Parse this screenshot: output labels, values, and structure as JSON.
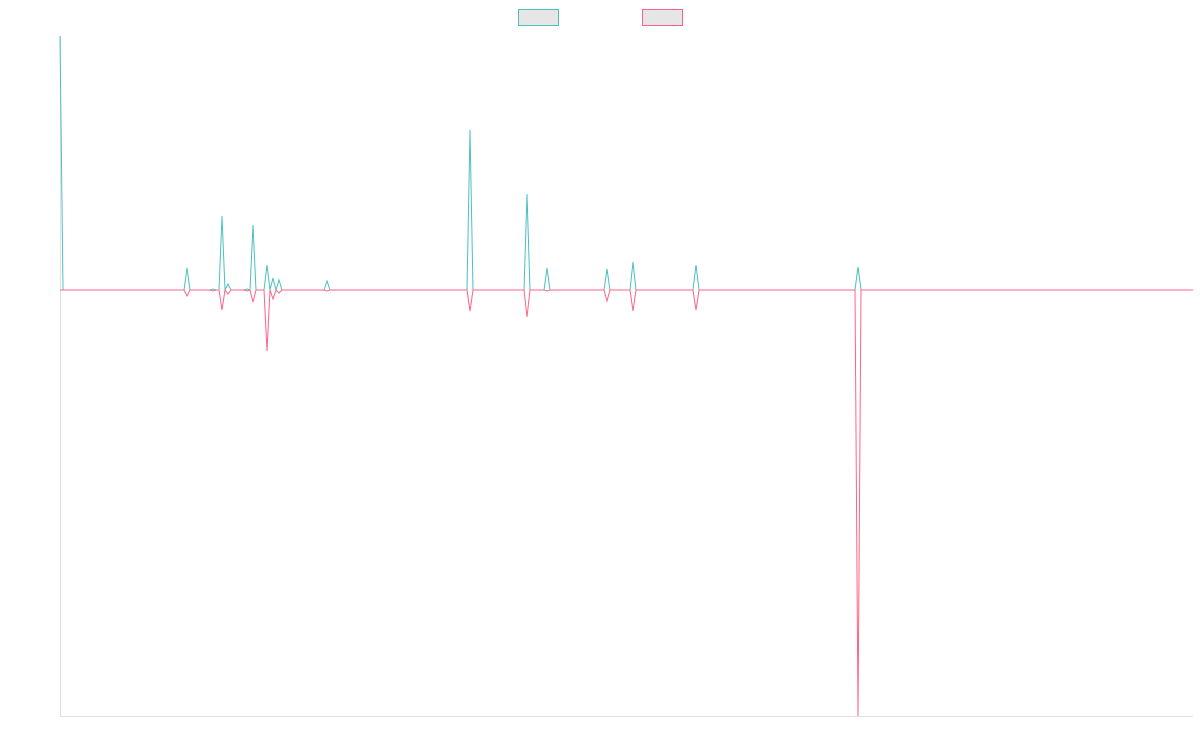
{
  "chart_data": {
    "type": "line",
    "x": [
      0,
      3,
      124,
      127,
      130,
      150,
      153,
      156,
      159,
      162,
      165,
      168,
      171,
      184,
      187,
      190,
      193,
      196,
      204,
      207,
      210,
      213,
      216,
      219,
      222,
      264,
      267,
      270,
      407,
      410,
      413,
      464,
      467,
      470,
      484,
      487,
      490,
      544,
      547,
      550,
      570,
      573,
      576,
      633,
      636,
      639,
      795,
      798,
      801,
      1133
    ],
    "series": [
      {
        "color": "#4bc0c0",
        "values": [
          25.4,
          0,
          0,
          2.2,
          0,
          0,
          0.1,
          0,
          0,
          7.4,
          0,
          0.6,
          0,
          0,
          0.1,
          0,
          6.5,
          0,
          0,
          2.5,
          0,
          1.2,
          0,
          1.0,
          0,
          0,
          0.9,
          0,
          0,
          16,
          0,
          0,
          9.6,
          0,
          0,
          2.2,
          0,
          0,
          2.1,
          0,
          0,
          2.8,
          0,
          0,
          2.5,
          0,
          0,
          2.3,
          0,
          0
        ]
      },
      {
        "color": "#ff6384",
        "values": [
          0,
          0,
          0,
          -0.6,
          0,
          0,
          -0.1,
          0,
          0,
          -2.0,
          0,
          -0.4,
          0,
          0,
          -0.1,
          0,
          -1.2,
          0,
          0,
          -6.1,
          0,
          -0.9,
          0,
          -0.3,
          0,
          0,
          -0.1,
          0,
          0,
          -2.1,
          0,
          0,
          -2.7,
          0,
          0,
          -0.1,
          0,
          0,
          -1.1,
          0,
          0,
          -2.1,
          0,
          0,
          -2.0,
          0,
          0,
          -42.6,
          0,
          0
        ]
      }
    ],
    "xlim": [
      0,
      1133
    ],
    "ylim": [
      -42.6,
      25.4
    ]
  }
}
